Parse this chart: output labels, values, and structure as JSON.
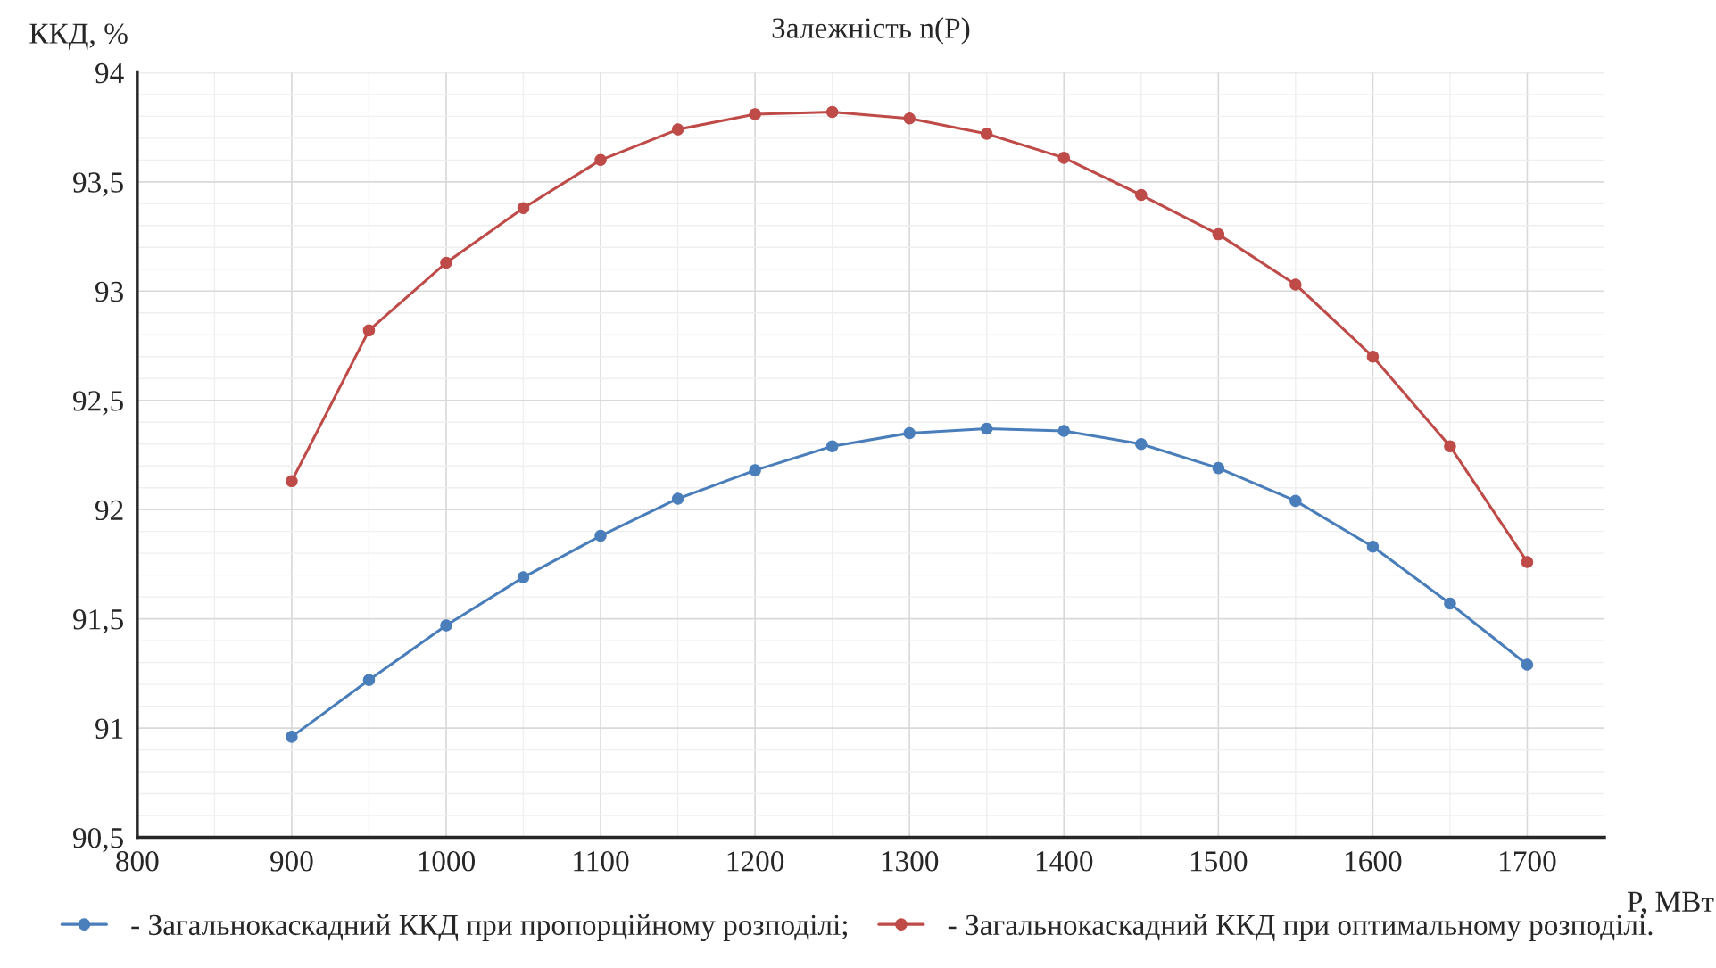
{
  "chart_data": {
    "type": "line",
    "title": "Залежність n(P)",
    "xlabel": "P, МВт",
    "ylabel": "ККД, %",
    "x": [
      900,
      950,
      1000,
      1050,
      1100,
      1150,
      1200,
      1250,
      1300,
      1350,
      1400,
      1450,
      1500,
      1550,
      1600,
      1650,
      1700
    ],
    "series": [
      {
        "name": "- Загальнокаскадний ККД при пропорційному розподілі;",
        "color": "#4a7ebb",
        "values": [
          90.96,
          91.22,
          91.47,
          91.69,
          91.88,
          92.05,
          92.18,
          92.29,
          92.35,
          92.37,
          92.36,
          92.3,
          92.19,
          92.04,
          91.83,
          91.57,
          91.29
        ]
      },
      {
        "name": "- Загальнокаскадний ККД при оптимальному розподілі.",
        "color": "#be4b48",
        "values": [
          92.13,
          92.82,
          93.13,
          93.38,
          93.6,
          93.74,
          93.81,
          93.82,
          93.79,
          93.72,
          93.61,
          93.44,
          93.26,
          93.03,
          92.7,
          92.29,
          91.76
        ]
      }
    ],
    "xlim": [
      800,
      1750
    ],
    "xticks": [
      800,
      900,
      1000,
      1100,
      1200,
      1300,
      1400,
      1500,
      1600,
      1700
    ],
    "ylim": [
      90.5,
      94
    ],
    "yticks": [
      {
        "value": 90.5,
        "label": "90,5"
      },
      91,
      {
        "value": 91.5,
        "label": "91,5"
      },
      92,
      {
        "value": 92.5,
        "label": "92,5"
      },
      93,
      {
        "value": 93.5,
        "label": "93,5"
      },
      94
    ],
    "grid": true,
    "legend": "bottom",
    "marker": "circle",
    "line_style": "solid"
  }
}
